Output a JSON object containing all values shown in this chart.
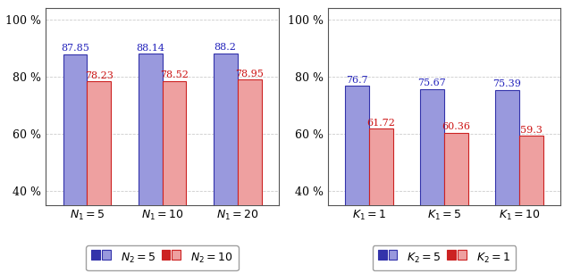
{
  "left": {
    "groups": [
      "$N_1{=}5$",
      "$N_1{=}10$",
      "$N_1{=}20$"
    ],
    "blue_values": [
      87.85,
      88.14,
      88.2
    ],
    "red_values": [
      78.23,
      78.52,
      78.95
    ],
    "ylim": [
      35,
      104
    ],
    "yticks": [
      40,
      60,
      80,
      100
    ],
    "ytick_labels": [
      "40 %",
      "60 %",
      "80 %",
      "100 %"
    ],
    "legend": [
      "$N_2{=}5$",
      "$N_2{=}10$"
    ]
  },
  "right": {
    "groups": [
      "$K_1{=}1$",
      "$K_1{=}5$",
      "$K_1{=}10$"
    ],
    "blue_values": [
      76.7,
      75.67,
      75.39
    ],
    "red_values": [
      61.72,
      60.36,
      59.3
    ],
    "ylim": [
      35,
      104
    ],
    "yticks": [
      40,
      60,
      80,
      100
    ],
    "ytick_labels": [
      "40 %",
      "60 %",
      "80 %",
      "100 %"
    ],
    "legend": [
      "$K_2{=}5$",
      "$K_2{=}1$"
    ]
  },
  "blue_bar_color": "#9999DD",
  "blue_bar_edgecolor": "#3333AA",
  "red_bar_color": "#EEA0A0",
  "red_bar_edgecolor": "#CC2222",
  "blue_text_color": "#2222BB",
  "red_text_color": "#CC1111",
  "bar_width": 0.32,
  "bg_color": "#FFFFFF",
  "grid_color": "#CCCCCC",
  "spine_color": "#555555",
  "label_fontsize": 9,
  "value_fontsize": 8
}
